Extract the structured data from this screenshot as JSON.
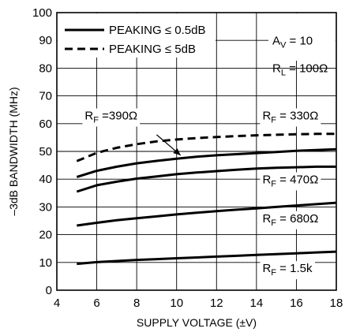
{
  "chart_data": {
    "type": "line",
    "xlabel": "SUPPLY VOLTAGE (±V)",
    "ylabel": "–3dB BANDWIDTH (MHz)",
    "xlim": [
      4,
      18
    ],
    "ylim": [
      0,
      100
    ],
    "x_ticks": [
      "4",
      "6",
      "8",
      "10",
      "12",
      "14",
      "16",
      "18"
    ],
    "y_ticks": [
      "0",
      "10",
      "20",
      "30",
      "40",
      "50",
      "60",
      "70",
      "80",
      "90",
      "100"
    ],
    "grid": true,
    "legend_position": "top-left",
    "legend": [
      {
        "label": "PEAKING ≤ 0.5dB",
        "style": "solid"
      },
      {
        "label": "PEAKING ≤ 5dB",
        "style": "dashed"
      }
    ],
    "conditions": {
      "av": {
        "main": "A",
        "sub": "V",
        "rest": " = 10"
      },
      "rl": {
        "main": "R",
        "sub": "L",
        "rest": " = 100Ω"
      }
    },
    "series": [
      {
        "style": "dashed",
        "x": [
          5,
          6,
          7,
          8,
          9,
          10,
          11,
          12,
          13,
          14,
          15,
          16,
          17,
          18
        ],
        "y": [
          46.5,
          49.5,
          51.3,
          52.6,
          53.6,
          54.3,
          54.8,
          55.2,
          55.5,
          55.8,
          56.0,
          56.2,
          56.3,
          56.3
        ]
      },
      {
        "style": "solid",
        "x": [
          5,
          6,
          7,
          8,
          9,
          10,
          11,
          12,
          13,
          14,
          15,
          16,
          17,
          18
        ],
        "y": [
          40.8,
          43.0,
          44.5,
          45.7,
          46.6,
          47.4,
          48.1,
          48.6,
          49.0,
          49.4,
          49.8,
          50.2,
          50.5,
          50.8
        ]
      },
      {
        "style": "solid",
        "x": [
          5,
          6,
          7,
          8,
          9,
          10,
          11,
          12,
          13,
          14,
          15,
          16,
          17,
          18
        ],
        "y": [
          35.5,
          37.8,
          39.1,
          40.2,
          41.0,
          41.8,
          42.4,
          42.9,
          43.4,
          43.8,
          44.1,
          44.3,
          44.5,
          44.5
        ]
      },
      {
        "style": "solid",
        "x": [
          5,
          6,
          7,
          8,
          9,
          10,
          11,
          12,
          13,
          14,
          15,
          16,
          17,
          18
        ],
        "y": [
          23.3,
          24.3,
          25.2,
          25.9,
          26.6,
          27.3,
          27.9,
          28.5,
          29.0,
          29.5,
          30.0,
          30.5,
          31.0,
          31.5
        ]
      },
      {
        "style": "solid",
        "x": [
          5,
          6,
          7,
          8,
          9,
          10,
          11,
          12,
          13,
          14,
          15,
          16,
          17,
          18
        ],
        "y": [
          9.5,
          10.1,
          10.5,
          10.9,
          11.2,
          11.5,
          11.8,
          12.1,
          12.4,
          12.7,
          13.0,
          13.3,
          13.6,
          13.9
        ]
      }
    ],
    "annotations": [
      {
        "main": "R",
        "sub": "F",
        "rest": " =390Ω",
        "ax": 5.4,
        "ay": 61.5,
        "mask": true,
        "arrow": {
          "x1": 9.0,
          "y1": 56.0,
          "x2": 10.2,
          "y2": 48.6
        }
      },
      {
        "main": "R",
        "sub": "F",
        "rest": " = 330Ω",
        "ax": 14.3,
        "ay": 61.5,
        "mask": true
      },
      {
        "main": "R",
        "sub": "F",
        "rest": " = 470Ω",
        "ax": 14.3,
        "ay": 38.5,
        "mask": true
      },
      {
        "main": "R",
        "sub": "F",
        "rest": " = 680Ω",
        "ax": 14.3,
        "ay": 24.5,
        "mask": true
      },
      {
        "main": "R",
        "sub": "F",
        "rest": " = 1.5k",
        "ax": 14.3,
        "ay": 6.5,
        "mask": true
      }
    ]
  }
}
